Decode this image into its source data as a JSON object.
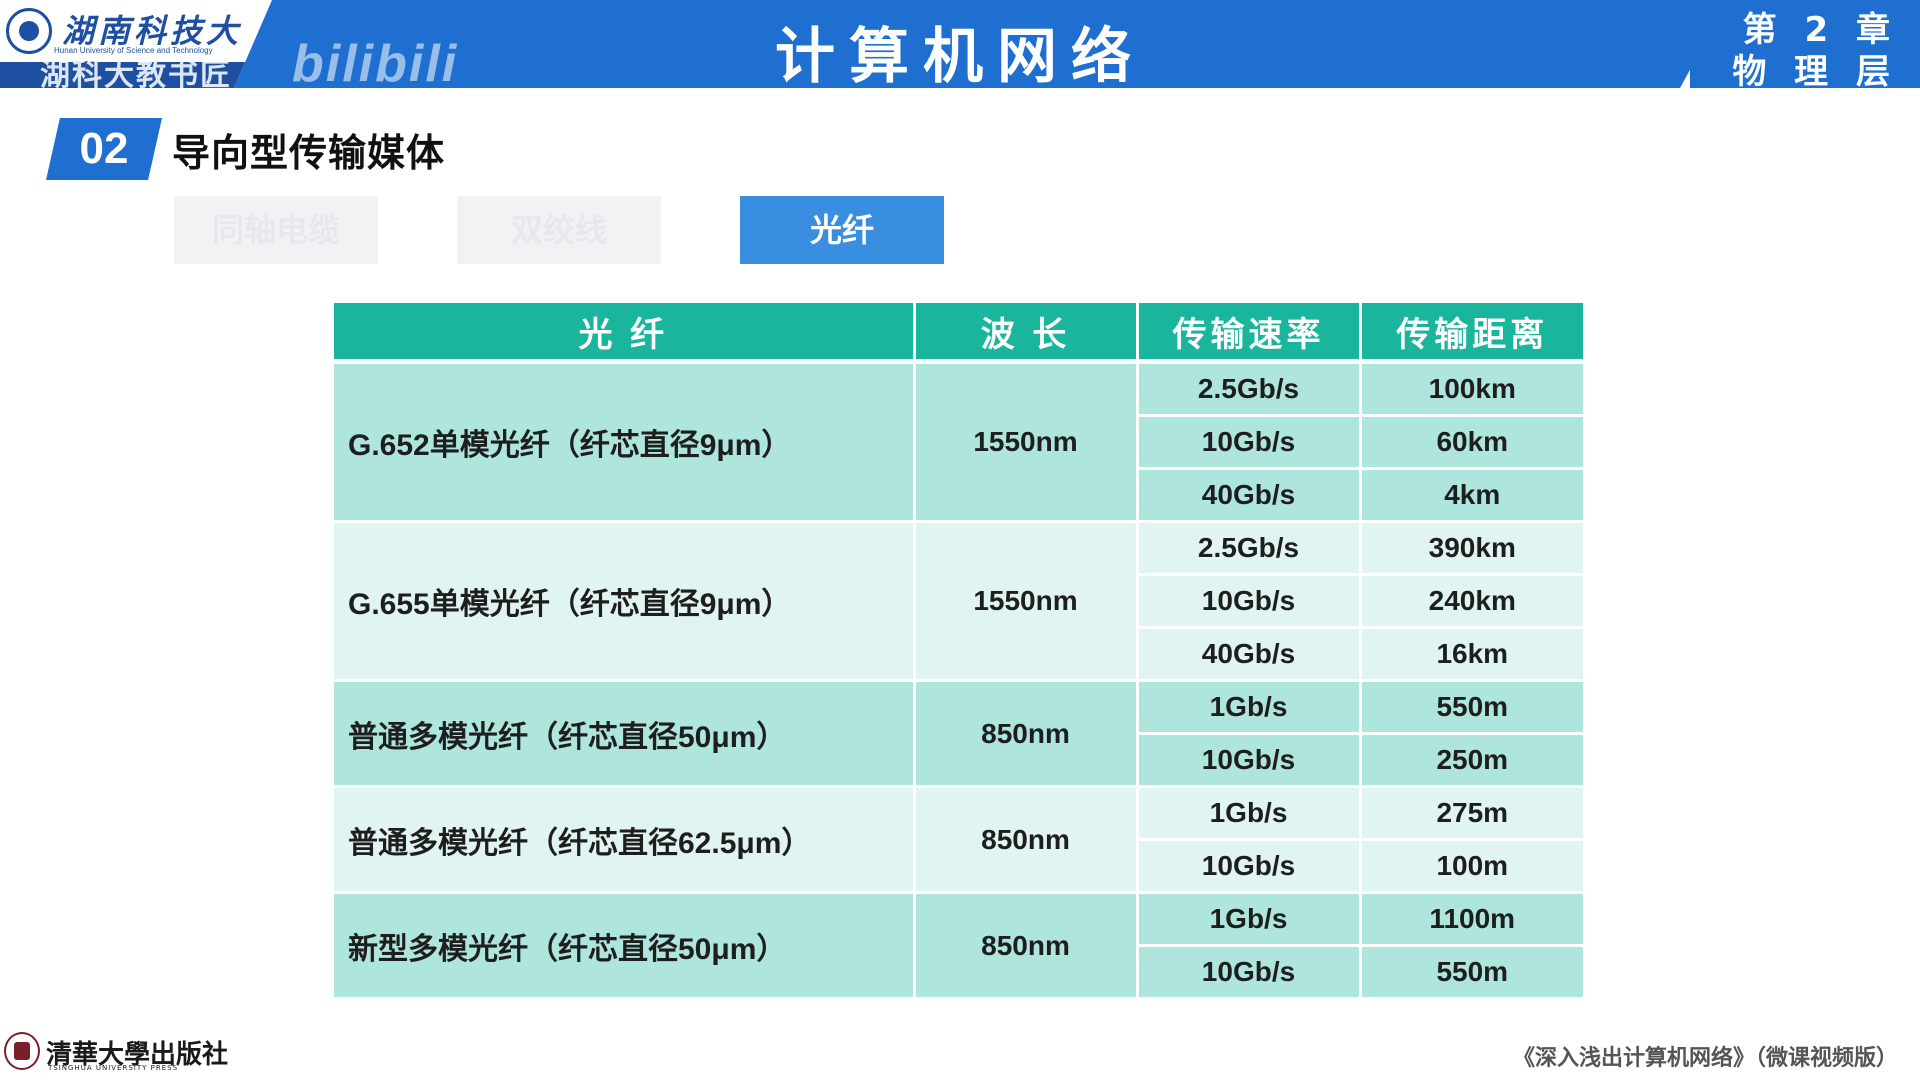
{
  "header": {
    "university_cn": "湖南科技大學",
    "university_en": "Hunan University of Science and Technology",
    "watermark": "湖科大教书匠",
    "platform_logo": "bilibili",
    "title": "计算机网络",
    "chapter_line1": "第 2 章",
    "chapter_line2": "物 理 层"
  },
  "section": {
    "number": "02",
    "title": "导向型传输媒体"
  },
  "tabs": [
    {
      "label": "同轴电缆",
      "active": false
    },
    {
      "label": "双绞线",
      "active": false
    },
    {
      "label": "光纤",
      "active": true
    }
  ],
  "table": {
    "headers": [
      "光 纤",
      "波 长",
      "传输速率",
      "传输距离"
    ],
    "groups": [
      {
        "name": "G.652单模光纤（纤芯直径9μm）",
        "wavelength": "1550nm",
        "rows": [
          [
            "2.5Gb/s",
            "100km"
          ],
          [
            "10Gb/s",
            "60km"
          ],
          [
            "40Gb/s",
            "4km"
          ]
        ]
      },
      {
        "name": "G.655单模光纤（纤芯直径9μm）",
        "wavelength": "1550nm",
        "rows": [
          [
            "2.5Gb/s",
            "390km"
          ],
          [
            "10Gb/s",
            "240km"
          ],
          [
            "40Gb/s",
            "16km"
          ]
        ]
      },
      {
        "name": "普通多模光纤（纤芯直径50μm）",
        "wavelength": "850nm",
        "rows": [
          [
            "1Gb/s",
            "550m"
          ],
          [
            "10Gb/s",
            "250m"
          ]
        ]
      },
      {
        "name": "普通多模光纤（纤芯直径62.5μm）",
        "wavelength": "850nm",
        "rows": [
          [
            "1Gb/s",
            "275m"
          ],
          [
            "10Gb/s",
            "100m"
          ]
        ]
      },
      {
        "name": "新型多模光纤（纤芯直径50μm）",
        "wavelength": "850nm",
        "rows": [
          [
            "1Gb/s",
            "1100m"
          ],
          [
            "10Gb/s",
            "550m"
          ]
        ]
      }
    ]
  },
  "footer": {
    "publisher_cn": "清華大學出版社",
    "publisher_en": "TSINGHUA UNIVERSITY PRESS",
    "book_title": "《深入浅出计算机网络》（微课视频版）"
  },
  "colors": {
    "header_blue": "#1f6fd1",
    "table_header": "#1ab59d",
    "row_dark": "#aee5dd",
    "row_light": "#e0f4f1",
    "tab_active": "#3a8ee0"
  }
}
